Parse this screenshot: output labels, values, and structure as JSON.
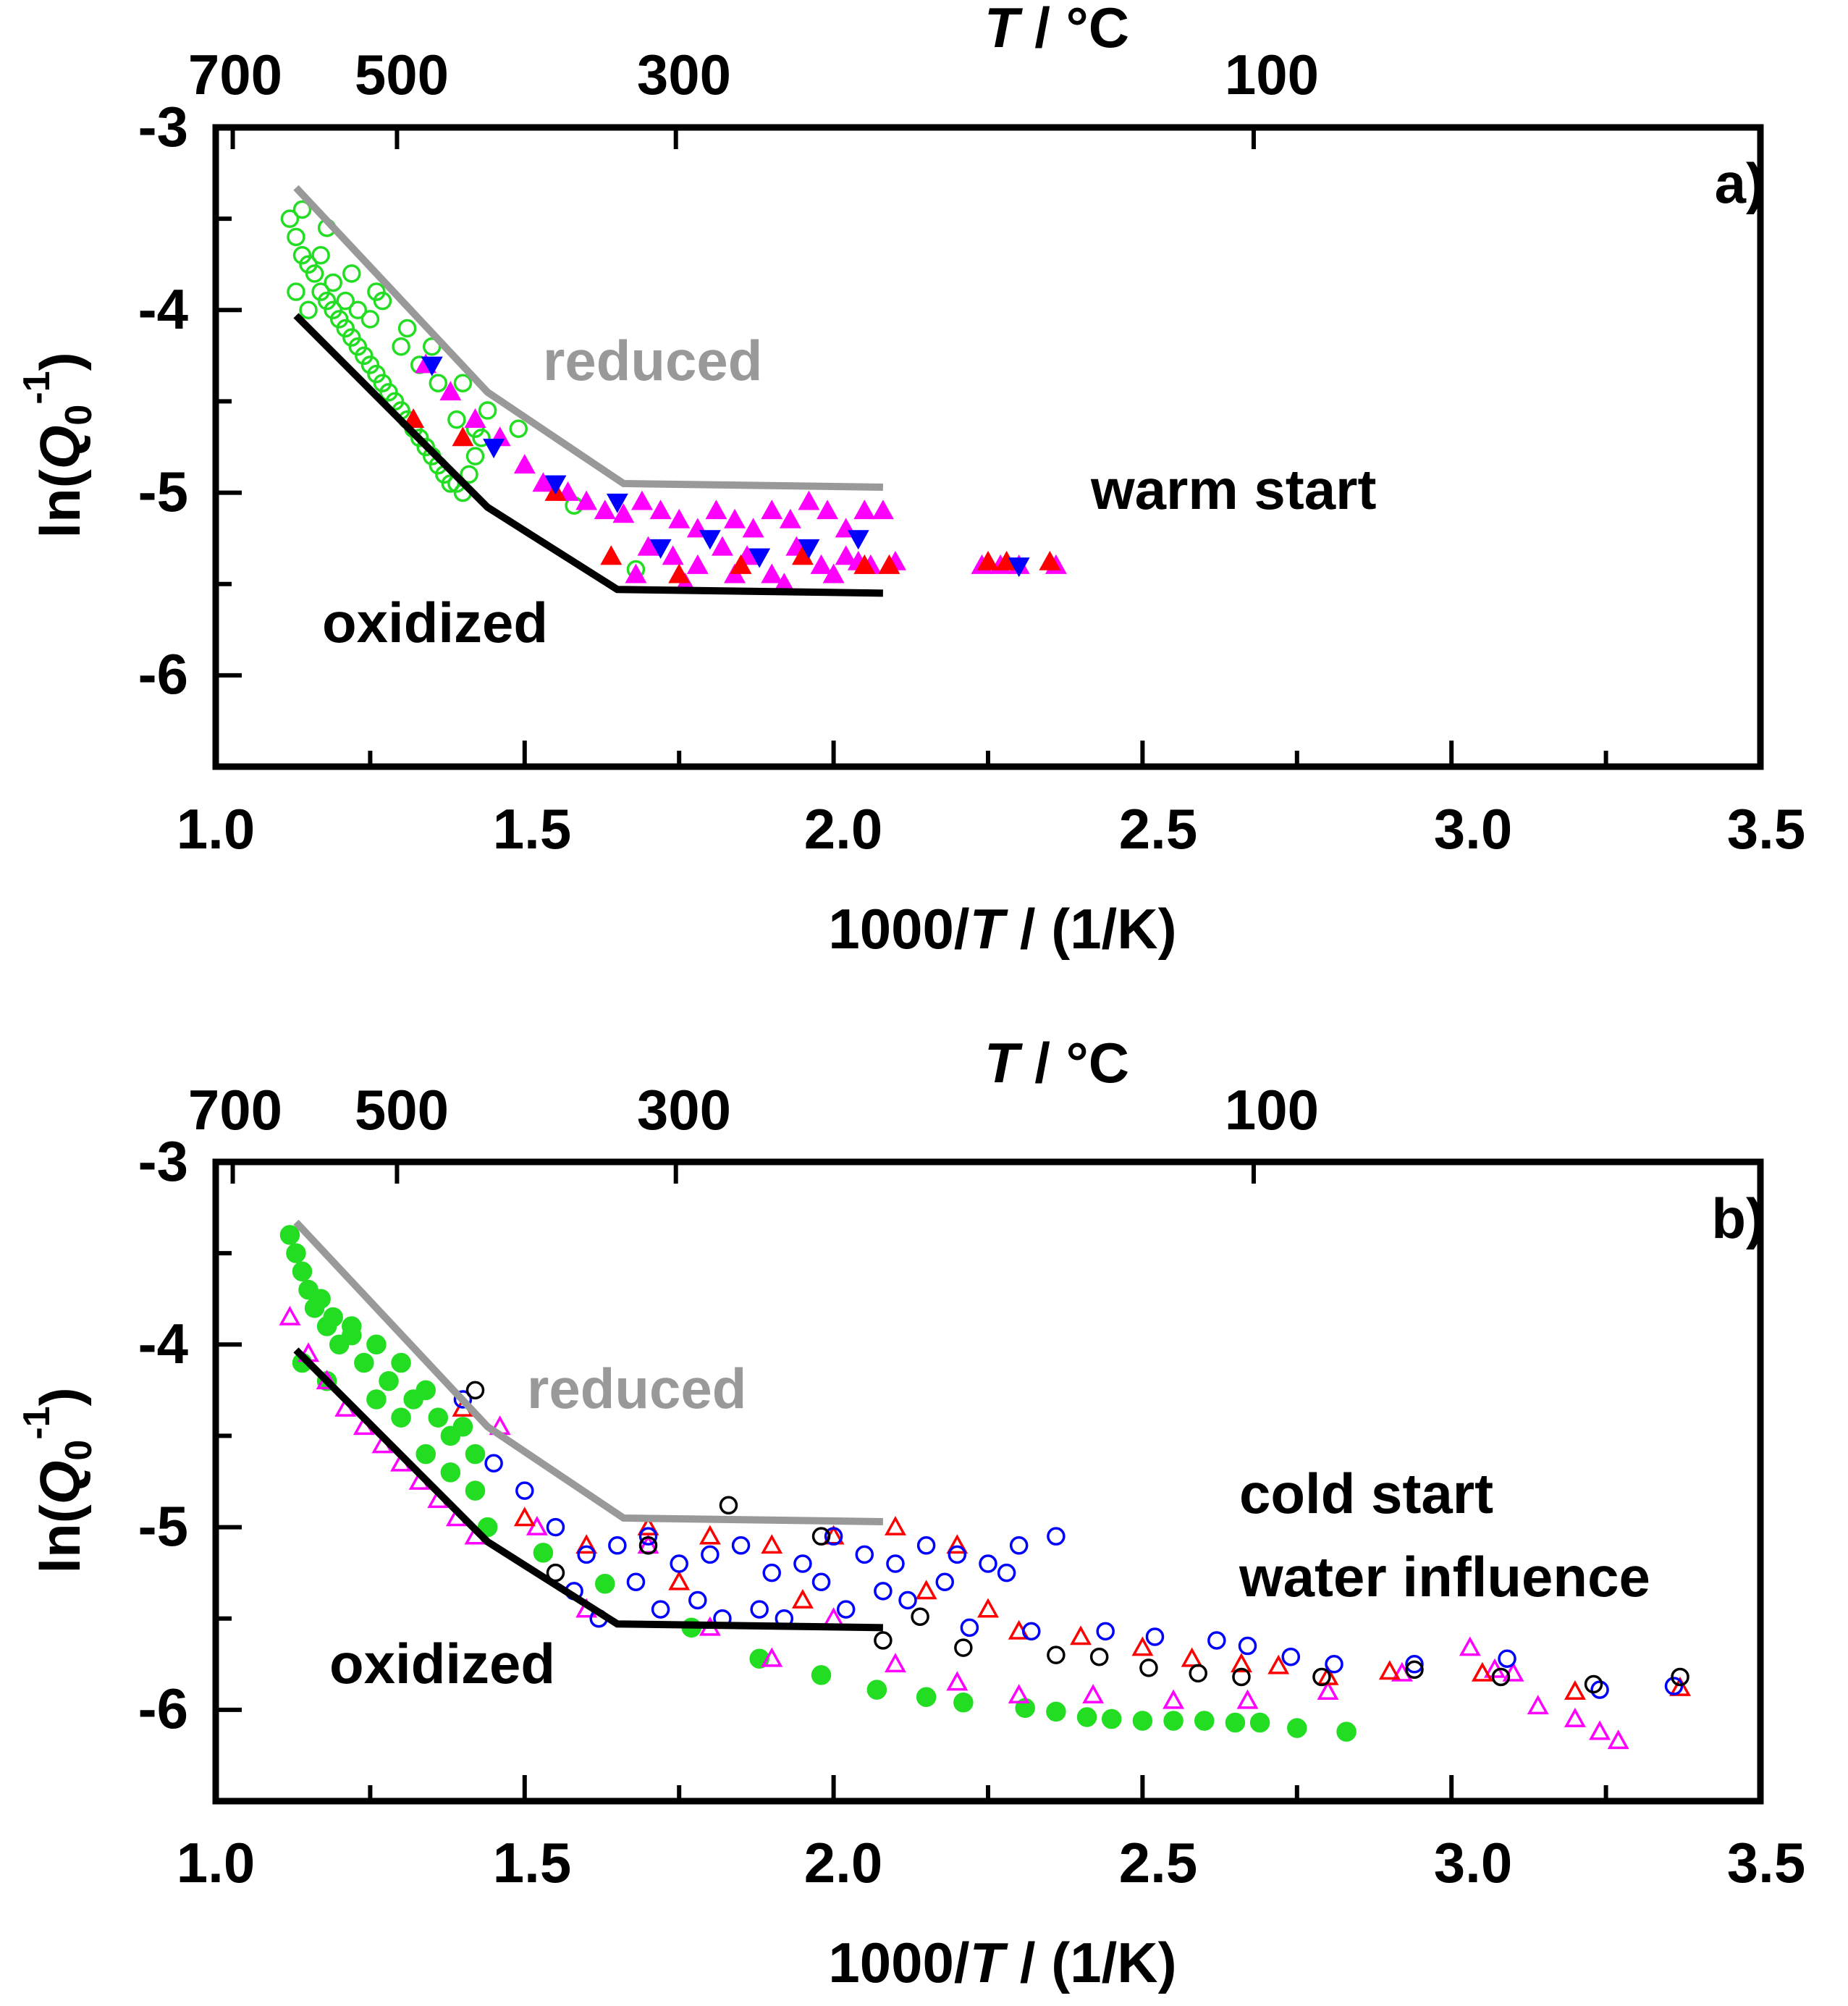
{
  "chart_data": [
    {
      "panel": "a)",
      "type": "scatter",
      "title": "",
      "xlabel": "1000/T / (1/K)",
      "ylabel": "ln(Q0^-1)",
      "top_axis_label": "T / °C",
      "top_ticks": [
        700,
        500,
        300,
        100
      ],
      "xlim": [
        1.0,
        3.5
      ],
      "ylim": [
        -6.5,
        -3
      ],
      "x_ticks": [
        "1.0",
        "1.5",
        "2.0",
        "2.5",
        "3.0",
        "3.5"
      ],
      "y_ticks": [
        "-3",
        "-4",
        "-5",
        "-6"
      ],
      "annotations": [
        "a)",
        "reduced",
        "oxidized",
        "warm start"
      ],
      "colors": {
        "reduced_line": "#999999",
        "oxidized_line": "#000000",
        "green": "#22dd22",
        "magenta": "#ff00ff",
        "red": "#ff0000",
        "blue": "#0000ff"
      },
      "lines": [
        {
          "name": "reduced",
          "x": [
            1.13,
            1.44,
            1.66,
            2.08
          ],
          "y": [
            -3.33,
            -4.45,
            -4.95,
            -4.97
          ]
        },
        {
          "name": "oxidized",
          "x": [
            1.13,
            1.44,
            1.65,
            2.08
          ],
          "y": [
            -4.03,
            -5.08,
            -5.53,
            -5.55
          ]
        }
      ],
      "series": [
        {
          "name": "green open circles",
          "marker": "circle-open",
          "color": "#22dd22",
          "x": [
            1.12,
            1.13,
            1.14,
            1.15,
            1.16,
            1.17,
            1.18,
            1.19,
            1.2,
            1.21,
            1.22,
            1.23,
            1.24,
            1.25,
            1.26,
            1.27,
            1.28,
            1.29,
            1.3,
            1.31,
            1.32,
            1.33,
            1.34,
            1.35,
            1.36,
            1.37,
            1.38,
            1.39,
            1.4,
            1.41,
            1.42,
            1.43,
            1.13,
            1.15,
            1.17,
            1.19,
            1.21,
            1.23,
            1.25,
            1.27,
            1.3,
            1.33,
            1.36,
            1.39,
            1.42,
            1.14,
            1.18,
            1.22,
            1.26,
            1.31,
            1.35,
            1.4,
            1.44,
            1.49,
            1.58,
            1.68
          ],
          "y": [
            -3.5,
            -3.6,
            -3.7,
            -3.75,
            -3.8,
            -3.9,
            -3.95,
            -4.0,
            -4.05,
            -4.1,
            -4.15,
            -4.2,
            -4.25,
            -4.3,
            -4.35,
            -4.4,
            -4.45,
            -4.5,
            -4.55,
            -4.6,
            -4.65,
            -4.7,
            -4.75,
            -4.8,
            -4.85,
            -4.9,
            -4.95,
            -4.95,
            -5.0,
            -4.9,
            -4.8,
            -4.7,
            -3.9,
            -4.0,
            -3.7,
            -3.85,
            -3.95,
            -4.0,
            -4.05,
            -3.95,
            -4.2,
            -4.3,
            -4.4,
            -4.6,
            -4.65,
            -3.45,
            -3.55,
            -3.8,
            -3.9,
            -4.1,
            -4.2,
            -4.4,
            -4.55,
            -4.65,
            -5.07,
            -5.42
          ]
        },
        {
          "name": "magenta filled triangles",
          "marker": "triangle-filled",
          "color": "#ff00ff",
          "x": [
            1.34,
            1.38,
            1.42,
            1.46,
            1.5,
            1.53,
            1.57,
            1.6,
            1.63,
            1.66,
            1.69,
            1.72,
            1.75,
            1.78,
            1.81,
            1.84,
            1.87,
            1.9,
            1.93,
            1.96,
            1.99,
            2.02,
            2.05,
            2.08,
            1.7,
            1.74,
            1.78,
            1.82,
            1.86,
            1.9,
            1.94,
            1.98,
            2.02,
            2.06,
            1.68,
            1.76,
            1.84,
            1.92,
            2.0,
            2.04,
            2.1,
            2.24,
            2.27,
            2.3,
            2.36
          ],
          "y": [
            -4.3,
            -4.45,
            -4.6,
            -4.7,
            -4.85,
            -4.95,
            -5.0,
            -5.05,
            -5.1,
            -5.12,
            -5.05,
            -5.1,
            -5.15,
            -5.2,
            -5.1,
            -5.15,
            -5.2,
            -5.1,
            -5.15,
            -5.05,
            -5.1,
            -5.2,
            -5.1,
            -5.1,
            -5.3,
            -5.35,
            -5.4,
            -5.3,
            -5.35,
            -5.45,
            -5.3,
            -5.4,
            -5.35,
            -5.4,
            -5.45,
            -5.5,
            -5.45,
            -5.5,
            -5.45,
            -5.38,
            -5.38,
            -5.4,
            -5.4,
            -5.4,
            -5.4
          ]
        },
        {
          "name": "red filled triangles",
          "marker": "triangle-filled",
          "color": "#ff0000",
          "x": [
            1.32,
            1.4,
            1.55,
            1.64,
            1.75,
            1.85,
            1.95,
            2.05,
            2.09,
            2.25,
            2.28,
            2.35
          ],
          "y": [
            -4.6,
            -4.7,
            -5.0,
            -5.35,
            -5.45,
            -5.4,
            -5.35,
            -5.4,
            -5.4,
            -5.38,
            -5.38,
            -5.38
          ]
        },
        {
          "name": "blue filled triangles",
          "marker": "triangle-down-filled",
          "color": "#0000ff",
          "x": [
            1.35,
            1.45,
            1.55,
            1.65,
            1.72,
            1.8,
            1.88,
            1.96,
            2.04,
            2.3
          ],
          "y": [
            -4.3,
            -4.75,
            -4.95,
            -5.05,
            -5.3,
            -5.25,
            -5.35,
            -5.3,
            -5.25,
            -5.4
          ]
        }
      ]
    },
    {
      "panel": "b)",
      "type": "scatter",
      "title": "",
      "xlabel": "1000/T / (1/K)",
      "ylabel": "ln(Q0^-1)",
      "top_axis_label": "T / °C",
      "top_ticks": [
        700,
        500,
        300,
        100
      ],
      "xlim": [
        1.0,
        3.5
      ],
      "ylim": [
        -6.5,
        -3
      ],
      "x_ticks": [
        "1.0",
        "1.5",
        "2.0",
        "2.5",
        "3.0",
        "3.5"
      ],
      "y_ticks": [
        "-3",
        "-4",
        "-5",
        "-6"
      ],
      "annotations": [
        "b)",
        "reduced",
        "oxidized",
        "cold start",
        "water influence"
      ],
      "colors": {
        "reduced_line": "#999999",
        "oxidized_line": "#000000",
        "green": "#22dd22",
        "magenta": "#ff00ff",
        "red": "#ff0000",
        "blue": "#0000ff",
        "black": "#000000"
      },
      "lines": [
        {
          "name": "reduced",
          "x": [
            1.13,
            1.44,
            1.66,
            2.08
          ],
          "y": [
            -3.33,
            -4.45,
            -4.95,
            -4.97
          ]
        },
        {
          "name": "oxidized",
          "x": [
            1.13,
            1.44,
            1.65,
            2.08
          ],
          "y": [
            -4.03,
            -5.08,
            -5.53,
            -5.55
          ]
        }
      ],
      "series": [
        {
          "name": "green filled circles",
          "marker": "circle-filled",
          "color": "#22dd22",
          "x": [
            1.12,
            1.13,
            1.14,
            1.15,
            1.16,
            1.17,
            1.18,
            1.19,
            1.2,
            1.22,
            1.24,
            1.26,
            1.28,
            1.3,
            1.32,
            1.34,
            1.36,
            1.38,
            1.4,
            1.42,
            1.14,
            1.18,
            1.22,
            1.26,
            1.3,
            1.34,
            1.38,
            1.42,
            1.44,
            1.53,
            1.63,
            1.77,
            1.88,
            1.98,
            2.07,
            2.15,
            2.21,
            2.31,
            2.36,
            2.41,
            2.45,
            2.5,
            2.55,
            2.6,
            2.65,
            2.69,
            2.75,
            2.83
          ],
          "y": [
            -3.4,
            -3.5,
            -3.6,
            -3.7,
            -3.8,
            -3.75,
            -3.9,
            -3.85,
            -4.0,
            -3.95,
            -4.1,
            -4.0,
            -4.2,
            -4.1,
            -4.3,
            -4.25,
            -4.4,
            -4.5,
            -4.45,
            -4.6,
            -4.1,
            -4.2,
            -3.9,
            -4.3,
            -4.4,
            -4.6,
            -4.7,
            -4.8,
            -5.0,
            -5.14,
            -5.31,
            -5.55,
            -5.72,
            -5.81,
            -5.89,
            -5.93,
            -5.96,
            -5.99,
            -6.01,
            -6.04,
            -6.05,
            -6.06,
            -6.06,
            -6.06,
            -6.07,
            -6.07,
            -6.1,
            -6.12
          ]
        },
        {
          "name": "magenta open triangles",
          "marker": "triangle-open",
          "color": "#ff00ff",
          "x": [
            1.12,
            1.15,
            1.18,
            1.21,
            1.24,
            1.27,
            1.3,
            1.33,
            1.36,
            1.39,
            1.42,
            1.46,
            1.52,
            1.6,
            1.7,
            1.8,
            1.9,
            2.0,
            2.1,
            2.2,
            2.3,
            2.42,
            2.55,
            2.67,
            2.8,
            2.92,
            3.03,
            3.07,
            3.1,
            3.14,
            3.2,
            3.24,
            3.27
          ],
          "y": [
            -3.85,
            -4.05,
            -4.2,
            -4.35,
            -4.45,
            -4.55,
            -4.65,
            -4.75,
            -4.85,
            -4.95,
            -5.05,
            -4.45,
            -5.0,
            -5.45,
            -5.1,
            -5.55,
            -5.72,
            -5.5,
            -5.75,
            -5.85,
            -5.92,
            -5.92,
            -5.95,
            -5.95,
            -5.9,
            -5.8,
            -5.66,
            -5.78,
            -5.8,
            -5.98,
            -6.05,
            -6.12,
            -6.17
          ]
        },
        {
          "name": "red open triangles",
          "marker": "triangle-open",
          "color": "#ff0000",
          "x": [
            1.4,
            1.5,
            1.6,
            1.7,
            1.8,
            1.9,
            2.0,
            2.1,
            2.2,
            2.3,
            2.4,
            2.5,
            2.58,
            2.66,
            2.72,
            2.8,
            2.9,
            3.05,
            3.2,
            3.37,
            1.75,
            1.95,
            2.15,
            2.25
          ],
          "y": [
            -4.35,
            -4.95,
            -5.1,
            -5.0,
            -5.05,
            -5.1,
            -5.05,
            -5.0,
            -5.1,
            -5.57,
            -5.6,
            -5.66,
            -5.72,
            -5.75,
            -5.76,
            -5.82,
            -5.79,
            -5.8,
            -5.9,
            -5.88,
            -5.3,
            -5.4,
            -5.35,
            -5.45
          ]
        },
        {
          "name": "blue open circles",
          "marker": "circle-open",
          "color": "#0000ff",
          "x": [
            1.4,
            1.45,
            1.5,
            1.55,
            1.6,
            1.65,
            1.7,
            1.75,
            1.8,
            1.85,
            1.9,
            1.95,
            2.0,
            2.05,
            2.1,
            2.15,
            2.2,
            2.25,
            2.3,
            2.36,
            1.58,
            1.68,
            1.78,
            1.88,
            1.98,
            2.08,
            2.18,
            2.28,
            1.62,
            1.72,
            1.82,
            1.92,
            2.02,
            2.12,
            2.22,
            2.32,
            2.44,
            2.52,
            2.62,
            2.67,
            2.74,
            2.81,
            2.94,
            3.09,
            3.24,
            3.36
          ],
          "y": [
            -4.3,
            -4.65,
            -4.8,
            -5.0,
            -5.15,
            -5.1,
            -5.05,
            -5.2,
            -5.15,
            -5.1,
            -5.25,
            -5.2,
            -5.05,
            -5.15,
            -5.2,
            -5.1,
            -5.15,
            -5.2,
            -5.1,
            -5.05,
            -5.35,
            -5.3,
            -5.4,
            -5.45,
            -5.3,
            -5.35,
            -5.3,
            -5.25,
            -5.5,
            -5.45,
            -5.5,
            -5.5,
            -5.45,
            -5.4,
            -5.55,
            -5.57,
            -5.57,
            -5.6,
            -5.62,
            -5.65,
            -5.71,
            -5.75,
            -5.75,
            -5.72,
            -5.89,
            -5.87
          ]
        },
        {
          "name": "black open circles",
          "marker": "circle-open",
          "color": "#000000",
          "x": [
            1.42,
            1.55,
            1.7,
            1.83,
            1.98,
            2.08,
            2.14,
            2.21,
            2.36,
            2.43,
            2.51,
            2.59,
            2.66,
            2.79,
            2.94,
            3.08,
            3.23,
            3.37
          ],
          "y": [
            -4.25,
            -5.25,
            -5.1,
            -4.88,
            -5.05,
            -5.62,
            -5.49,
            -5.66,
            -5.7,
            -5.71,
            -5.77,
            -5.8,
            -5.82,
            -5.82,
            -5.78,
            -5.82,
            -5.86,
            -5.82
          ]
        }
      ]
    }
  ]
}
